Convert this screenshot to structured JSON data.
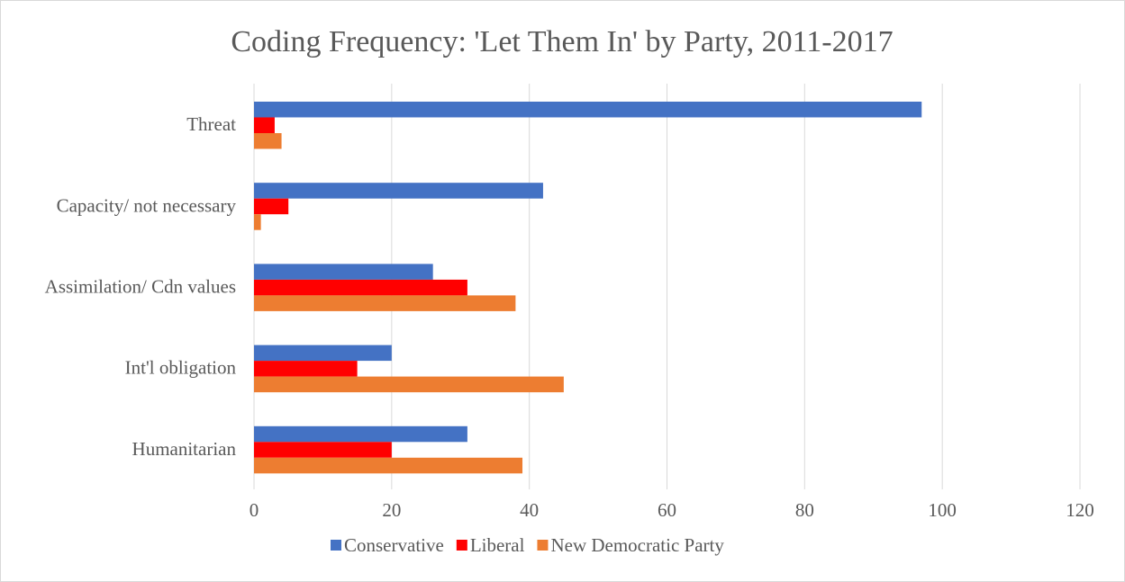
{
  "chart_data": {
    "type": "bar",
    "orientation": "horizontal",
    "title": "Coding Frequency: 'Let Them In' by Party, 2011-2017",
    "xlabel": "",
    "ylabel": "",
    "categories": [
      "Threat",
      "Capacity/ not necessary",
      "Assimilation/ Cdn values",
      "Int'l obligation",
      "Humanitarian"
    ],
    "series": [
      {
        "name": "Conservative",
        "color": "#4472c4",
        "values": [
          97,
          42,
          26,
          20,
          31
        ]
      },
      {
        "name": "Liberal",
        "color": "#ff0000",
        "values": [
          3,
          5,
          31,
          15,
          20
        ]
      },
      {
        "name": "New Democratic Party",
        "color": "#ed7d31",
        "values": [
          4,
          1,
          38,
          45,
          39
        ]
      }
    ],
    "xlim": [
      0,
      120
    ],
    "xticks": [
      "0",
      "20",
      "40",
      "60",
      "80",
      "100",
      "120"
    ],
    "grid": "vertical",
    "legend_position": "bottom"
  }
}
